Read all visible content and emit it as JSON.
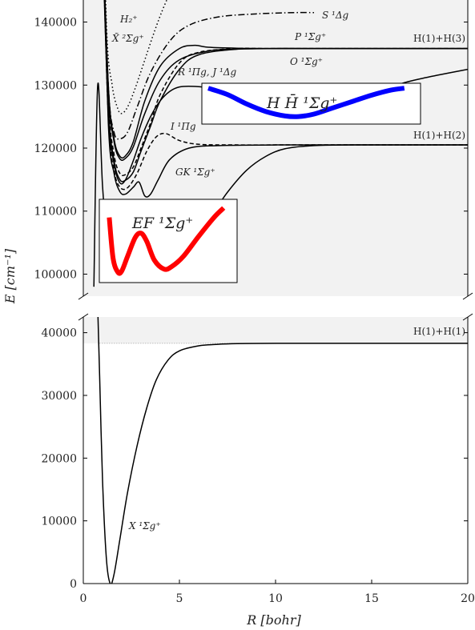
{
  "chart_data": {
    "type": "line",
    "xlabel": "R [bohr]",
    "ylabel": "E [cm⁻¹]",
    "x_ticks": [
      "0",
      "5",
      "10",
      "15",
      "20"
    ],
    "xlim": [
      0,
      20
    ],
    "panels": [
      {
        "name": "upper",
        "ylim": [
          96500,
          143500
        ],
        "y_ticks": [
          "100000",
          "110000",
          "120000",
          "130000",
          "140000"
        ],
        "shaded_above": 96500,
        "asymptote_labels": [
          "H(1)+H(3)",
          "H(1)+H(2)"
        ],
        "series": [
          {
            "label": "H₂⁺  X̃ ²Σg⁺",
            "style": "dotted",
            "color": "#000000",
            "x": [
              0.9,
              1.2,
              1.5,
              1.8,
              2.0,
              2.3,
              2.7,
              3.2,
              3.7,
              4.2,
              5.0
            ],
            "y": [
              180000,
              140000,
              130000,
              126200,
              125500,
              126500,
              129500,
              134000,
              138500,
              142500,
              148000
            ]
          },
          {
            "label": "S ¹Δg",
            "style": "dashdot",
            "color": "#000000",
            "x": [
              0.95,
              1.3,
              1.6,
              1.9,
              2.3,
              2.8,
              3.5,
              4.5,
              5.5,
              7,
              9,
              11,
              12
            ],
            "y": [
              160000,
              130000,
              122500,
              121500,
              122500,
              126500,
              132000,
              137000,
              139500,
              140800,
              141300,
              141500,
              141500
            ]
          },
          {
            "label": "P ¹Σg⁺",
            "style": "solid",
            "color": "#000000",
            "x": [
              0.95,
              1.3,
              1.6,
              1.9,
              2.2,
              2.6,
              3.2,
              4.0,
              5.0,
              5.8,
              6.5,
              8,
              10,
              15,
              20
            ],
            "y": [
              160000,
              130000,
              121500,
              118700,
              118800,
              121000,
              127500,
              133000,
              135800,
              136300,
              136000,
              135850,
              135800,
              135800,
              135800
            ]
          },
          {
            "label": "O ¹Σg⁺",
            "style": "solid",
            "color": "#000000",
            "x": [
              0.95,
              1.3,
              1.6,
              1.9,
              2.2,
              2.6,
              3.2,
              4.0,
              5.0,
              6.5,
              8,
              10,
              12,
              20
            ],
            "y": [
              160000,
              129500,
              121000,
              118300,
              118400,
              120200,
              125500,
              130800,
              134000,
              135400,
              135700,
              135800,
              135800,
              135800
            ]
          },
          {
            "label": "R ¹Πg",
            "style": "dashed",
            "color": "#000000",
            "x": [
              0.95,
              1.3,
              1.6,
              1.9,
              2.2,
              2.6,
              3.0,
              3.5,
              4.0,
              5.0,
              6.0,
              8,
              10,
              20
            ],
            "y": [
              160000,
              128000,
              119000,
              116000,
              115800,
              117000,
              120000,
              124000,
              128500,
              133500,
              135200,
              135800,
              135800,
              135800
            ]
          },
          {
            "label": "J ¹Δg",
            "style": "solid",
            "color": "#000000",
            "x": [
              0.95,
              1.3,
              1.6,
              1.9,
              2.2,
              2.6,
              3.0,
              3.5,
              4.0,
              5.0,
              6.0,
              8,
              10,
              20
            ],
            "y": [
              160000,
              127000,
              118000,
              115000,
              114900,
              116200,
              119500,
              123500,
              127500,
              132500,
              134800,
              135700,
              135800,
              135800
            ]
          },
          {
            "label": "I ¹Πg",
            "style": "dashed",
            "color": "#000000",
            "x": [
              0.95,
              1.3,
              1.6,
              1.9,
              2.3,
              2.8,
              3.3,
              3.8,
              4.3,
              5.0,
              6.0,
              8,
              10,
              20
            ],
            "y": [
              160000,
              125000,
              116500,
              113800,
              113700,
              116000,
              119500,
              121800,
              122300,
              121200,
              120600,
              120500,
              120500,
              120500
            ]
          },
          {
            "label": "GK ¹Σg⁺",
            "style": "solid",
            "color": "#000000",
            "x": [
              0.95,
              1.3,
              1.6,
              1.9,
              2.2,
              2.6,
              2.9,
              3.2,
              3.5,
              3.9,
              4.5,
              5.5,
              7,
              10,
              20
            ],
            "y": [
              160000,
              124000,
              116000,
              113100,
              112700,
              113800,
              114600,
              112400,
              112700,
              115000,
              118200,
              120000,
              120400,
              120500,
              120500
            ]
          },
          {
            "label": "H H̄ ¹Σg⁺",
            "style": "solid",
            "color": "#000000",
            "x": [
              0.95,
              1.3,
              1.6,
              1.9,
              2.2,
              2.6,
              3.0,
              3.5,
              4.0,
              4.5,
              5.0,
              5.7,
              6.5,
              8,
              10,
              11,
              12.5,
              14.5,
              16.5,
              18,
              20
            ],
            "y": [
              160000,
              126000,
              117500,
              114500,
              115000,
              118000,
              121500,
              125000,
              127500,
              129000,
              129700,
              129800,
              129500,
              127800,
              125800,
              125100,
              125800,
              128000,
              130200,
              131300,
              132500
            ]
          },
          {
            "label": "EF ¹Σg⁺",
            "style": "solid",
            "color": "#000000",
            "x": [
              0.55,
              0.75,
              1.0,
              1.3,
              1.6,
              1.9,
              2.2,
              2.6,
              3.0,
              3.3,
              3.7,
              4.2,
              4.6,
              5.2,
              6.0,
              6.8,
              7.5,
              8.5,
              9.5,
              10.5,
              12,
              14,
              17,
              20
            ],
            "y": [
              98000,
              130000,
              114000,
              104000,
              100500,
              100500,
              102800,
              105800,
              106500,
              105200,
              102200,
              100800,
              101200,
              102800,
              106000,
              109800,
              113000,
              116500,
              118700,
              119900,
              120400,
              120500,
              120500,
              120500
            ]
          }
        ],
        "highlights": [
          {
            "label": "EF ¹Σg⁺",
            "color": "#ff0000",
            "x": [
              1.35,
              1.55,
              1.8,
              2.0,
              2.3,
              2.7,
              3.0,
              3.3,
              3.7,
              4.2,
              4.6,
              5.2,
              6.0,
              6.8,
              7.3
            ],
            "y": [
              109000,
              102500,
              100300,
              100500,
              102800,
              105800,
              106500,
              105200,
              102200,
              100800,
              101200,
              102800,
              106000,
              109000,
              110500
            ]
          },
          {
            "label": "H H̄ ¹Σg⁺",
            "color": "#0000ff",
            "x": [
              6.5,
              7.5,
              8.5,
              9.5,
              10.5,
              11.2,
              12.0,
              13.0,
              14.0,
              15.0,
              16.0,
              16.7
            ],
            "y": [
              129500,
              128500,
              127000,
              125800,
              125100,
              125000,
              125400,
              126400,
              127400,
              128400,
              129200,
              129500
            ]
          }
        ],
        "annotations": [
          "H₂⁺",
          "X̃ ²Σg⁺",
          "S ¹Δg",
          "P ¹Σg⁺",
          "O ¹Σg⁺",
          "R ¹Πg, J ¹Δg",
          "I ¹Πg",
          "GK ¹Σg⁺",
          "EF ¹Σg⁺",
          "H H̄ ¹Σg⁺"
        ]
      },
      {
        "name": "lower",
        "ylim": [
          0,
          42500
        ],
        "y_ticks": [
          "0",
          "10000",
          "20000",
          "30000",
          "40000"
        ],
        "shaded_above": 38300,
        "asymptote_labels": [
          "H(1)+H(1)"
        ],
        "series": [
          {
            "label": "X ¹Σg⁺",
            "style": "solid",
            "color": "#000000",
            "x": [
              0.75,
              0.85,
              1.0,
              1.2,
              1.4,
              1.6,
              1.9,
              2.3,
              2.8,
              3.3,
              3.8,
              4.4,
              5.0,
              6.0,
              7.0,
              8.0,
              10,
              15,
              20
            ],
            "y": [
              44000,
              33000,
              16500,
              4000,
              0,
              1500,
              7000,
              14500,
              22000,
              28000,
              32500,
              35600,
              37100,
              37900,
              38150,
              38250,
              38300,
              38300,
              38300
            ]
          }
        ],
        "annotations": [
          "X ¹Σg⁺"
        ]
      }
    ]
  }
}
